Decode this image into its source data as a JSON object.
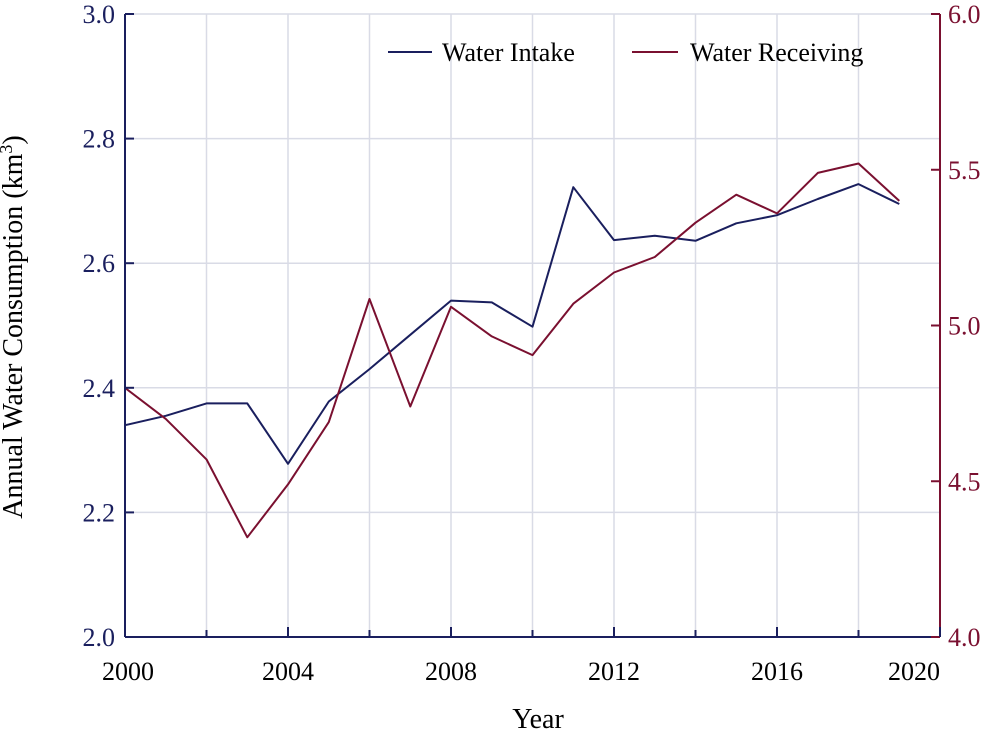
{
  "chart_data": {
    "type": "line",
    "title": "",
    "xlabel": "Year",
    "ylabel": "Annual Water Consumption (km",
    "ylabel_sup": "3",
    "ylabel_close": ")",
    "xlim": [
      2000,
      2020
    ],
    "ylim_left": [
      2.0,
      3.0
    ],
    "ylim_right": [
      4.0,
      6.0
    ],
    "x_ticks": [
      2000,
      2004,
      2008,
      2012,
      2016,
      2020
    ],
    "x_tick_labels": [
      "2000",
      "2004",
      "2008",
      "2012",
      "2016",
      "2020"
    ],
    "x_grid": [
      2000,
      2002,
      2004,
      2006,
      2008,
      2010,
      2012,
      2014,
      2016,
      2018,
      2020
    ],
    "y_left_ticks": [
      2.0,
      2.2,
      2.4,
      2.6,
      2.8,
      3.0
    ],
    "y_left_tick_labels": [
      "2.0",
      "2.2",
      "2.4",
      "2.6",
      "2.8",
      "3.0"
    ],
    "y_right_ticks": [
      4.0,
      4.5,
      5.0,
      5.5,
      6.0
    ],
    "y_right_tick_labels": [
      "4.0",
      "4.5",
      "5.0",
      "5.5",
      "6.0"
    ],
    "grid": true,
    "legend_position": "top-right",
    "colors": {
      "left_axis": "#1a1f5e",
      "right_axis": "#7a1030"
    },
    "series": [
      {
        "name": "Water Intake",
        "axis": "left",
        "color": "#1a1f5e",
        "x": [
          2000,
          2001,
          2002,
          2003,
          2004,
          2005,
          2006,
          2007,
          2008,
          2009,
          2010,
          2011,
          2012,
          2013,
          2014,
          2015,
          2016,
          2017,
          2018,
          2019
        ],
        "values": [
          2.34,
          2.355,
          2.375,
          2.375,
          2.278,
          2.378,
          2.43,
          2.485,
          2.54,
          2.537,
          2.498,
          2.722,
          2.637,
          2.644,
          2.636,
          2.664,
          2.677,
          2.703,
          2.727,
          2.695
        ]
      },
      {
        "name": "Water Receiving",
        "axis": "right",
        "color": "#7a1030",
        "x": [
          2000,
          2001,
          2002,
          2003,
          2004,
          2005,
          2006,
          2007,
          2008,
          2009,
          2010,
          2011,
          2012,
          2013,
          2014,
          2015,
          2016,
          2017,
          2018,
          2019
        ],
        "values": [
          4.8,
          4.7,
          4.57,
          4.32,
          4.49,
          4.69,
          5.085,
          4.74,
          5.06,
          4.965,
          4.905,
          5.07,
          5.17,
          5.22,
          5.33,
          5.42,
          5.36,
          5.49,
          5.52,
          5.4
        ]
      }
    ]
  }
}
